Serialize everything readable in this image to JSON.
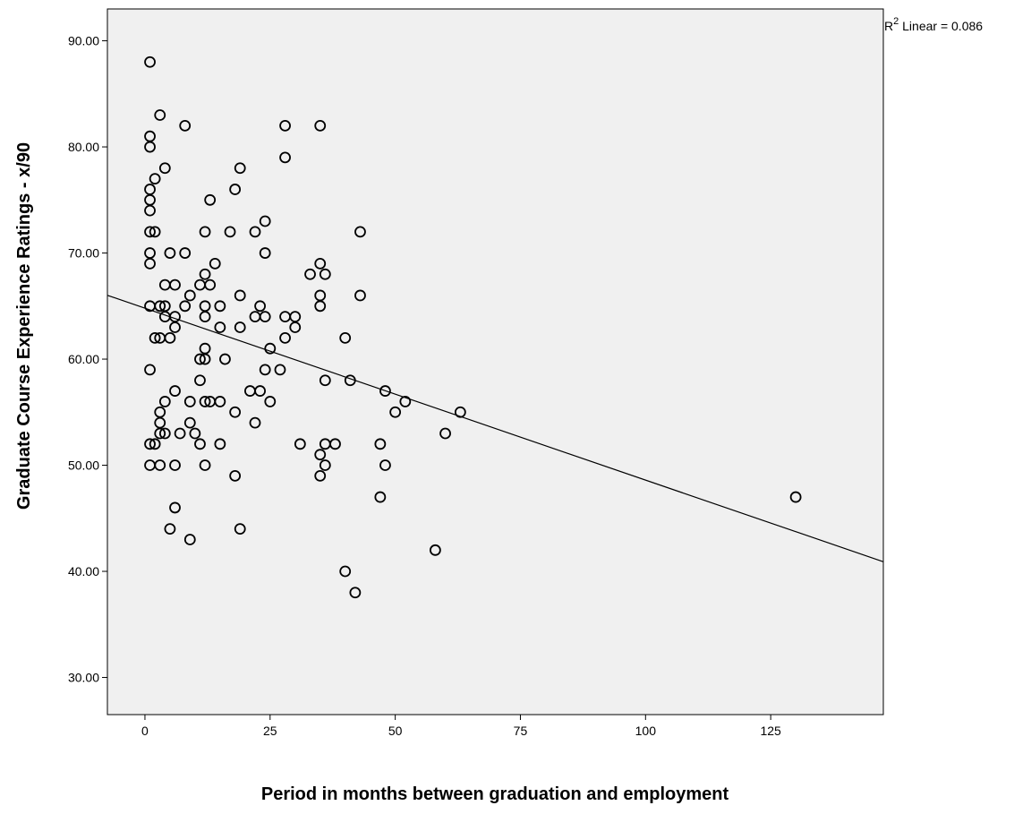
{
  "chart_data": {
    "type": "scatter",
    "xlabel": "Period in months between graduation and employment",
    "ylabel": "Graduate Course Experience Ratings - x/90",
    "xlim": [
      -7.5,
      147.5
    ],
    "ylim": [
      26.5,
      93
    ],
    "x_ticks": [
      0,
      25,
      50,
      75,
      100,
      125
    ],
    "y_ticks": [
      30.0,
      40.0,
      50.0,
      60.0,
      70.0,
      80.0,
      90.0
    ],
    "x_tick_labels": [
      "0",
      "25",
      "50",
      "75",
      "100",
      "125"
    ],
    "y_tick_labels": [
      "30.00",
      "40.00",
      "50.00",
      "60.00",
      "70.00",
      "80.00",
      "90.00"
    ],
    "fit_line": {
      "label_prefix": "R",
      "label_superscript": "2",
      "label_suffix": " Linear = 0.086",
      "intercept": 64.8,
      "slope": -0.162
    },
    "grid": false,
    "points": [
      [
        1,
        88
      ],
      [
        3,
        83
      ],
      [
        8,
        82
      ],
      [
        28,
        82
      ],
      [
        35,
        82
      ],
      [
        1,
        81
      ],
      [
        1,
        80
      ],
      [
        28,
        79
      ],
      [
        4,
        78
      ],
      [
        19,
        78
      ],
      [
        2,
        77
      ],
      [
        1,
        76
      ],
      [
        18,
        76
      ],
      [
        1,
        75
      ],
      [
        13,
        75
      ],
      [
        1,
        74
      ],
      [
        24,
        73
      ],
      [
        1,
        72
      ],
      [
        2,
        72
      ],
      [
        12,
        72
      ],
      [
        17,
        72
      ],
      [
        22,
        72
      ],
      [
        43,
        72
      ],
      [
        1,
        70
      ],
      [
        5,
        70
      ],
      [
        8,
        70
      ],
      [
        24,
        70
      ],
      [
        1,
        69
      ],
      [
        14,
        69
      ],
      [
        35,
        69
      ],
      [
        12,
        68
      ],
      [
        33,
        68
      ],
      [
        36,
        68
      ],
      [
        4,
        67
      ],
      [
        6,
        67
      ],
      [
        11,
        67
      ],
      [
        13,
        67
      ],
      [
        9,
        66
      ],
      [
        19,
        66
      ],
      [
        35,
        66
      ],
      [
        43,
        66
      ],
      [
        1,
        65
      ],
      [
        3,
        65
      ],
      [
        4,
        65
      ],
      [
        8,
        65
      ],
      [
        12,
        65
      ],
      [
        15,
        65
      ],
      [
        23,
        65
      ],
      [
        35,
        65
      ],
      [
        4,
        64
      ],
      [
        6,
        64
      ],
      [
        12,
        64
      ],
      [
        22,
        64
      ],
      [
        24,
        64
      ],
      [
        28,
        64
      ],
      [
        30,
        64
      ],
      [
        6,
        63
      ],
      [
        15,
        63
      ],
      [
        19,
        63
      ],
      [
        30,
        63
      ],
      [
        2,
        62
      ],
      [
        3,
        62
      ],
      [
        5,
        62
      ],
      [
        28,
        62
      ],
      [
        40,
        62
      ],
      [
        12,
        61
      ],
      [
        25,
        61
      ],
      [
        11,
        60
      ],
      [
        12,
        60
      ],
      [
        16,
        60
      ],
      [
        1,
        59
      ],
      [
        24,
        59
      ],
      [
        27,
        59
      ],
      [
        11,
        58
      ],
      [
        36,
        58
      ],
      [
        41,
        58
      ],
      [
        6,
        57
      ],
      [
        21,
        57
      ],
      [
        23,
        57
      ],
      [
        48,
        57
      ],
      [
        4,
        56
      ],
      [
        9,
        56
      ],
      [
        12,
        56
      ],
      [
        13,
        56
      ],
      [
        15,
        56
      ],
      [
        25,
        56
      ],
      [
        52,
        56
      ],
      [
        3,
        55
      ],
      [
        18,
        55
      ],
      [
        50,
        55
      ],
      [
        63,
        55
      ],
      [
        3,
        54
      ],
      [
        9,
        54
      ],
      [
        22,
        54
      ],
      [
        3,
        53
      ],
      [
        4,
        53
      ],
      [
        7,
        53
      ],
      [
        10,
        53
      ],
      [
        60,
        53
      ],
      [
        1,
        52
      ],
      [
        2,
        52
      ],
      [
        11,
        52
      ],
      [
        15,
        52
      ],
      [
        31,
        52
      ],
      [
        36,
        52
      ],
      [
        38,
        52
      ],
      [
        47,
        52
      ],
      [
        35,
        51
      ],
      [
        1,
        50
      ],
      [
        3,
        50
      ],
      [
        6,
        50
      ],
      [
        12,
        50
      ],
      [
        36,
        50
      ],
      [
        48,
        50
      ],
      [
        18,
        49
      ],
      [
        35,
        49
      ],
      [
        47,
        47
      ],
      [
        130,
        47
      ],
      [
        6,
        46
      ],
      [
        5,
        44
      ],
      [
        19,
        44
      ],
      [
        9,
        43
      ],
      [
        58,
        42
      ],
      [
        40,
        40
      ],
      [
        42,
        38
      ]
    ]
  }
}
